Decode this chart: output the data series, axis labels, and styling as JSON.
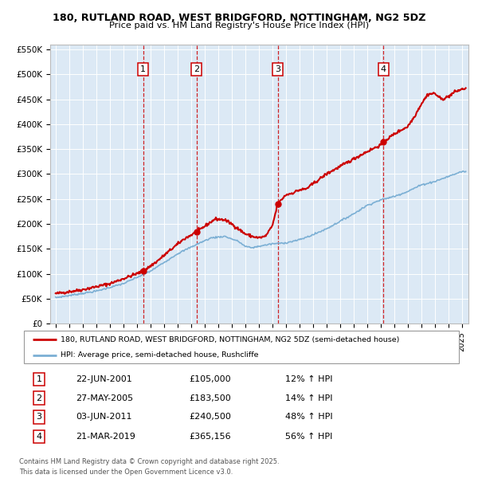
{
  "title1": "180, RUTLAND ROAD, WEST BRIDGFORD, NOTTINGHAM, NG2 5DZ",
  "title2": "Price paid vs. HM Land Registry's House Price Index (HPI)",
  "ylim": [
    0,
    560000
  ],
  "yticks": [
    0,
    50000,
    100000,
    150000,
    200000,
    250000,
    300000,
    350000,
    400000,
    450000,
    500000,
    550000
  ],
  "ytick_labels": [
    "£0",
    "£50K",
    "£100K",
    "£150K",
    "£200K",
    "£250K",
    "£300K",
    "£350K",
    "£400K",
    "£450K",
    "£500K",
    "£550K"
  ],
  "xlim_start": 1994.6,
  "xlim_end": 2025.5,
  "plot_bg_color": "#dce9f5",
  "sale_dates_num": [
    2001.47,
    2005.41,
    2011.42,
    2019.22
  ],
  "sale_prices": [
    105000,
    183500,
    240500,
    365156
  ],
  "sale_labels": [
    "1",
    "2",
    "3",
    "4"
  ],
  "legend_line1": "180, RUTLAND ROAD, WEST BRIDGFORD, NOTTINGHAM, NG2 5DZ (semi-detached house)",
  "legend_line2": "HPI: Average price, semi-detached house, Rushcliffe",
  "table_rows": [
    [
      "1",
      "22-JUN-2001",
      "£105,000",
      "12% ↑ HPI"
    ],
    [
      "2",
      "27-MAY-2005",
      "£183,500",
      "14% ↑ HPI"
    ],
    [
      "3",
      "03-JUN-2011",
      "£240,500",
      "48% ↑ HPI"
    ],
    [
      "4",
      "21-MAR-2019",
      "£365,156",
      "56% ↑ HPI"
    ]
  ],
  "footer1": "Contains HM Land Registry data © Crown copyright and database right 2025.",
  "footer2": "This data is licensed under the Open Government Licence v3.0.",
  "red_line_color": "#cc0000",
  "blue_line_color": "#7bafd4",
  "dashed_line_color": "#cc0000"
}
